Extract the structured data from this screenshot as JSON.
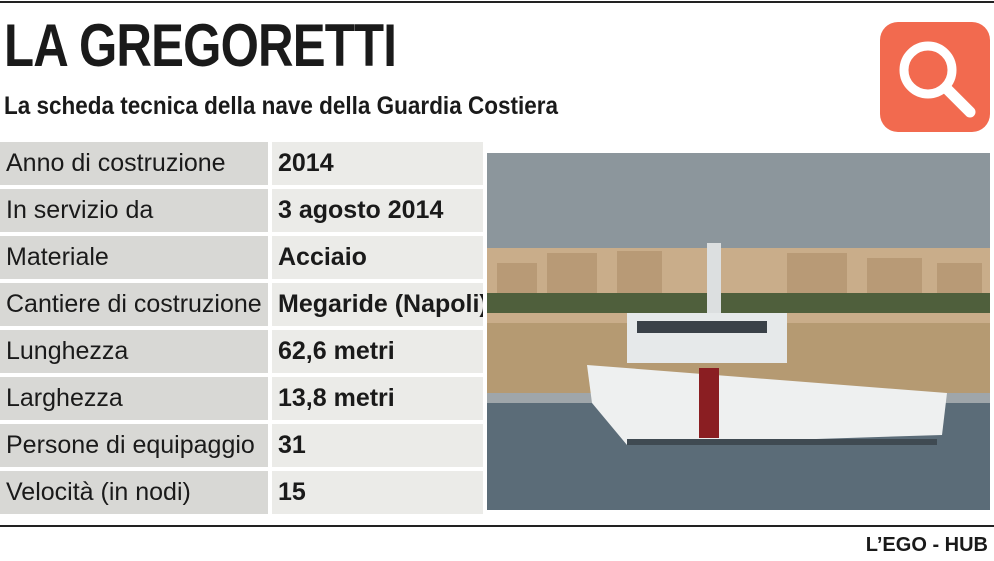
{
  "header": {
    "title": "LA GREGORETTI",
    "subtitle": "La scheda tecnica della nave della Guardia Costiera"
  },
  "table": {
    "rows": [
      [
        "Anno di costruzione",
        "2014"
      ],
      [
        "In servizio da",
        "3 agosto 2014"
      ],
      [
        "Materiale",
        "Acciaio"
      ],
      [
        "Cantiere di costruzione",
        "Megaride (Napoli)"
      ],
      [
        "Lunghezza",
        "62,6 metri"
      ],
      [
        "Larghezza",
        "13,8 metri"
      ],
      [
        "Persone di equipaggio",
        "31"
      ],
      [
        "Velocità (in nodi)",
        "15"
      ]
    ]
  },
  "footer": {
    "credit": "L’EGO - HUB"
  }
}
